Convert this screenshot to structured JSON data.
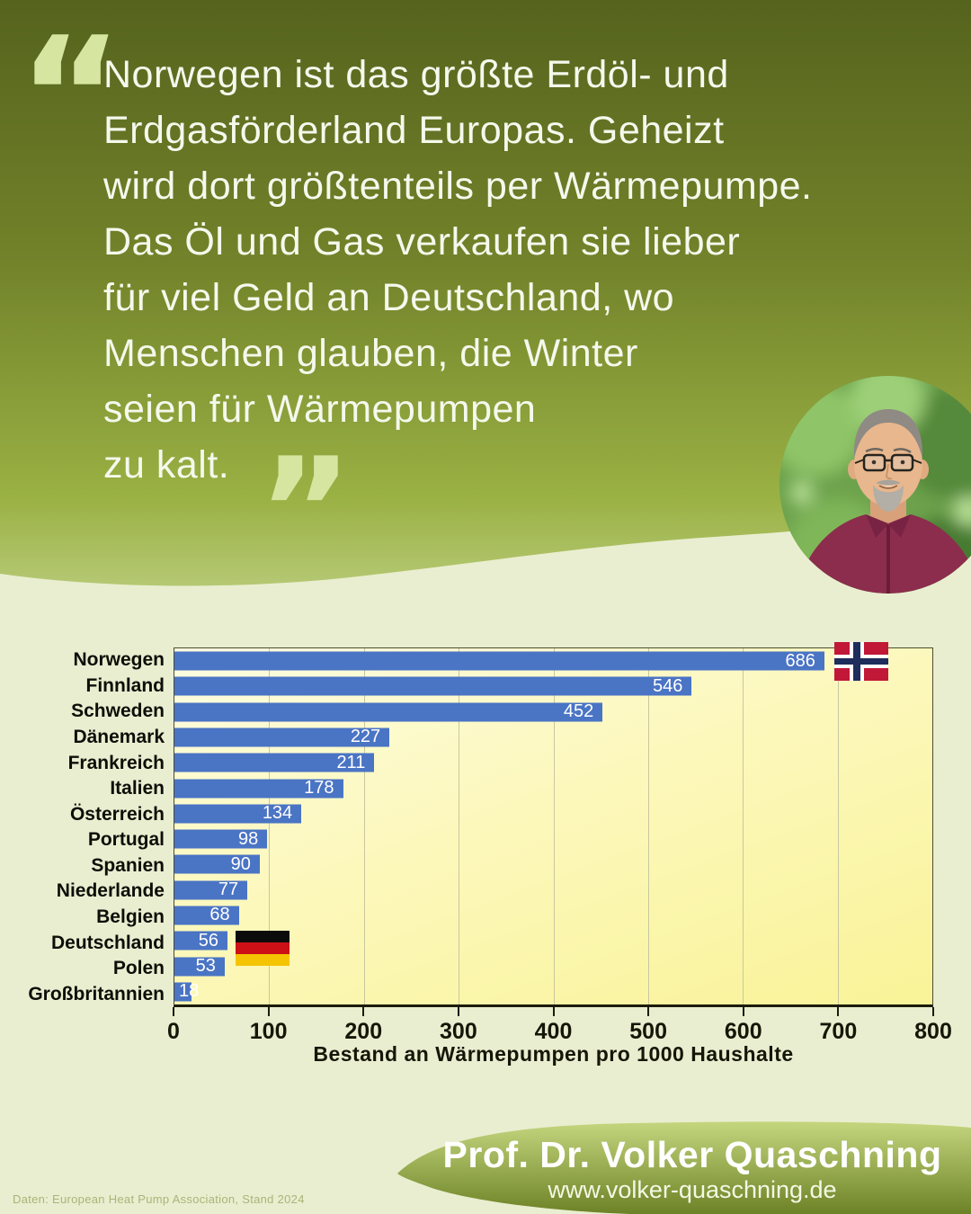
{
  "quote": {
    "open_mark": "“",
    "close_mark": "”",
    "lines": [
      "Norwegen ist das größte Erdöl- und",
      "Erdgasförderland Europas. Geheizt",
      "wird dort größtenteils per Wärmepumpe.",
      "Das Öl und Gas verkaufen sie lieber",
      "für viel Geld an Deutschland, wo",
      "Menschen glauben, die Winter",
      "seien für Wärmepumpen",
      "zu kalt."
    ]
  },
  "chart_data": {
    "type": "bar",
    "orientation": "horizontal",
    "categories": [
      "Norwegen",
      "Finnland",
      "Schweden",
      "Dänemark",
      "Frankreich",
      "Italien",
      "Österreich",
      "Portugal",
      "Spanien",
      "Niederlande",
      "Belgien",
      "Deutschland",
      "Polen",
      "Großbritannien"
    ],
    "values": [
      686,
      546,
      452,
      227,
      211,
      178,
      134,
      98,
      90,
      77,
      68,
      56,
      53,
      18
    ],
    "xlabel": "Bestand an Wärmepumpen pro 1000 Haushalte",
    "xlim": [
      0,
      800
    ],
    "xticks": [
      0,
      100,
      200,
      300,
      400,
      500,
      600,
      700,
      800
    ],
    "grid": "vertical",
    "value_labels": "inside-end, white",
    "flags": [
      {
        "country": "Norwegen",
        "flag": "norway"
      },
      {
        "country": "Deutschland",
        "flag": "germany"
      }
    ]
  },
  "footer": {
    "name": "Prof. Dr. Volker Quaschning",
    "website": "www.volker-quaschning.de"
  },
  "source_note": "Daten: European Heat Pump Association, Stand 2024",
  "colors": {
    "background_top_gradient": [
      "#55631d",
      "#72832a",
      "#9ab144",
      "#b5c873"
    ],
    "background_lower": "#e9eed0",
    "quote_text": "#f5f8ec",
    "quote_marks": "#d6e5a0",
    "bar": "#4a74c4",
    "bar_value_text": "#ffffff",
    "plot_background": [
      "#fefce2",
      "#f9f398"
    ],
    "gridline": "#c9c7a0",
    "axis_text": "#161608",
    "footer_blob_gradient": [
      "#c4d67e",
      "#6d8226"
    ],
    "footer_text": "#ffffff",
    "source_note_text": "#a9b478",
    "norway_flag": {
      "red": "#c11837",
      "navy": "#1d2d5c",
      "white": "#ffffff"
    },
    "germany_flag": {
      "black": "#0b0b0b",
      "red": "#cc1016",
      "gold": "#f5c400"
    }
  }
}
